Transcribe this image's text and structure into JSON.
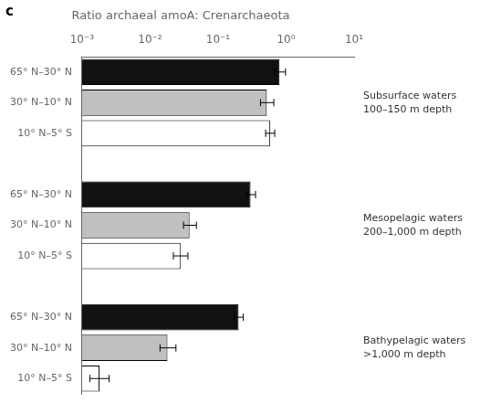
{
  "chart_data": {
    "type": "bar",
    "orientation": "horizontal",
    "title": "Ratio archaeal amoA: Crenarchaeota",
    "panel_label": "c",
    "categories": [
      "65° N–30° N",
      "30° N–10° N",
      "10° N–5° S",
      "65° N–30° N",
      "30° N–10° N",
      "10° N–5° S",
      "65° N–30° N",
      "30° N–10° N",
      "10° N–5° S"
    ],
    "values": [
      0.8,
      0.52,
      0.58,
      0.3,
      0.038,
      0.028,
      0.2,
      0.018,
      0.0018
    ],
    "error_minus": [
      0.12,
      0.1,
      0.08,
      0.04,
      0.007,
      0.006,
      0.028,
      0.004,
      0.0005
    ],
    "error_plus": [
      0.18,
      0.14,
      0.1,
      0.055,
      0.01,
      0.008,
      0.035,
      0.006,
      0.0007
    ],
    "colors": [
      "#111111",
      "#c0c0c0",
      "#ffffff",
      "#111111",
      "#c0c0c0",
      "#ffffff",
      "#111111",
      "#c0c0c0",
      "#ffffff"
    ],
    "annotations": [
      "Subsurface waters\n100–150 m depth",
      "Mesopelagic waters\n200–1,000 m depth",
      "Bathypelagic waters\n>1,000 m depth"
    ],
    "log": "x",
    "xlim": [
      0.001,
      10
    ],
    "xticks": [
      {
        "value": 0.001,
        "label": "10⁻³"
      },
      {
        "value": 0.01,
        "label": "10⁻²"
      },
      {
        "value": 0.1,
        "label": "10⁻¹"
      },
      {
        "value": 1,
        "label": "10⁰"
      },
      {
        "value": 10,
        "label": "10¹"
      }
    ],
    "grid": false
  }
}
